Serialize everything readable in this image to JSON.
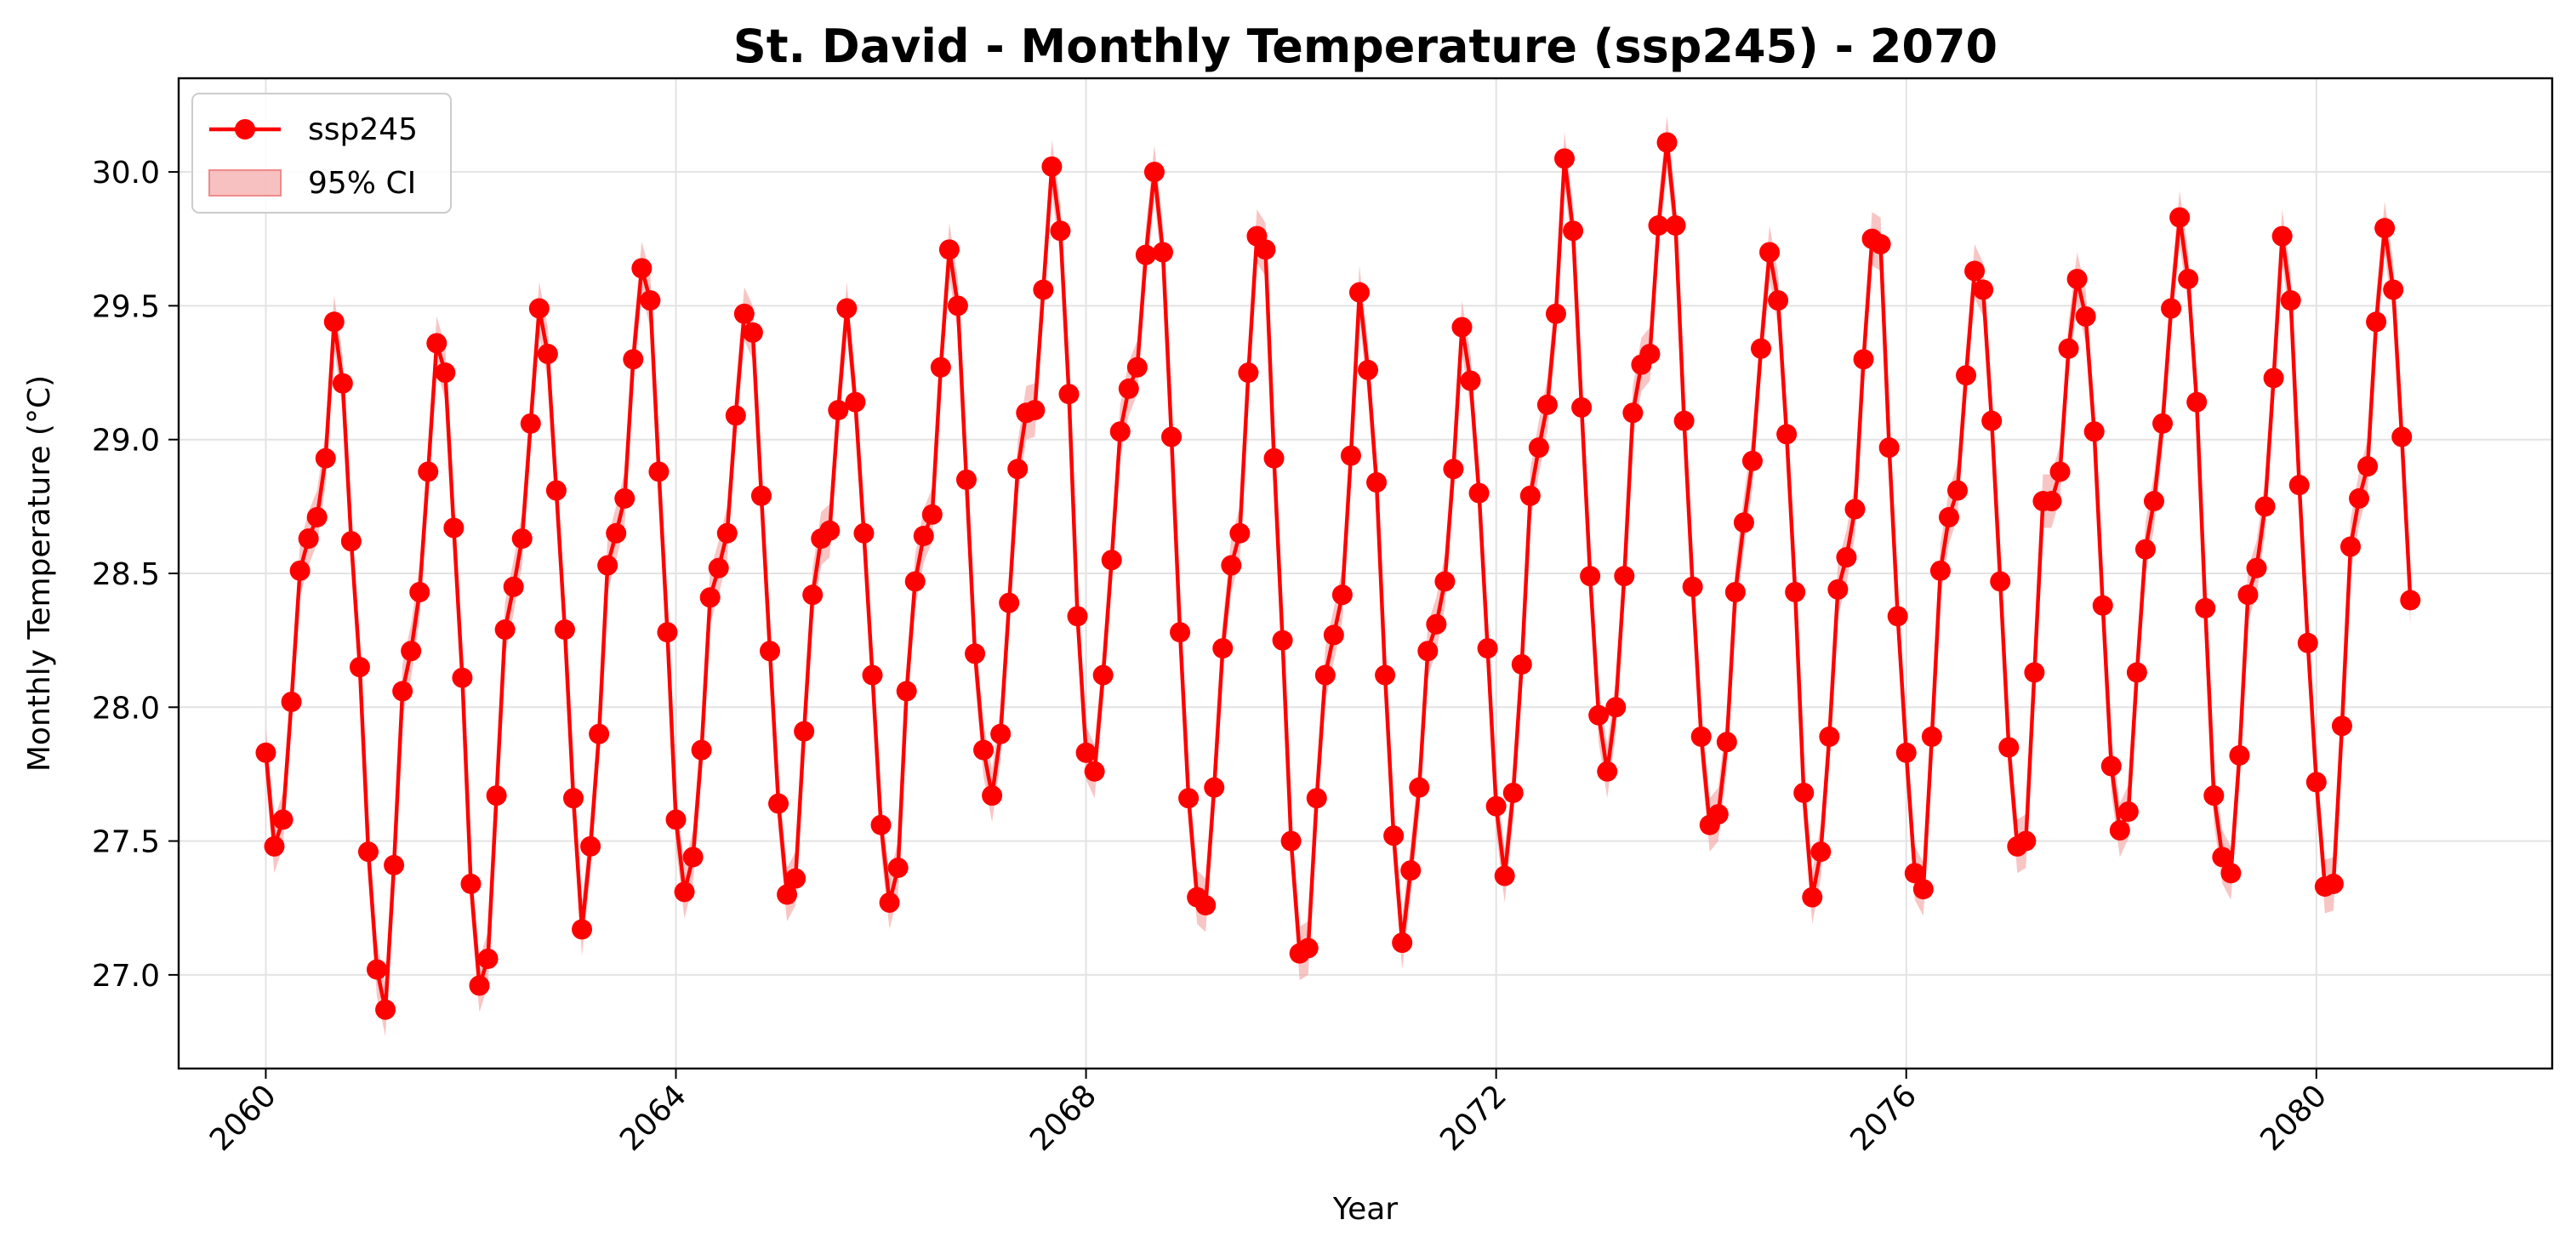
{
  "chart_data": {
    "type": "line",
    "title": "St. David - Monthly Temperature (ssp245) - 2070",
    "xlabel": "Year",
    "ylabel": "Monthly Temperature (°C)",
    "xlim": [
      2059.15,
      2082.3
    ],
    "ylim": [
      26.65,
      30.35
    ],
    "x_ticks": [
      2060,
      2064,
      2068,
      2072,
      2076,
      2080
    ],
    "x_tick_labels": [
      "2060",
      "2064",
      "2068",
      "2072",
      "2076",
      "2080"
    ],
    "y_ticks": [
      27.0,
      27.5,
      28.0,
      28.5,
      29.0,
      29.5,
      30.0
    ],
    "y_tick_labels": [
      "27.0",
      "27.5",
      "28.0",
      "28.5",
      "29.0",
      "29.5",
      "30.0"
    ],
    "grid": true,
    "legend_position": "top-left",
    "legend": [
      {
        "label": "ssp245",
        "kind": "line-marker"
      },
      {
        "label": "95% CI",
        "kind": "band"
      }
    ],
    "colors": {
      "line": "#ff0000",
      "band": "#f4a6a6"
    },
    "ci_halfwidth": 0.1,
    "start_year": 2060,
    "months_per_year": 12,
    "series": [
      {
        "name": "ssp245",
        "values": [
          27.83,
          27.48,
          27.58,
          28.02,
          28.51,
          28.63,
          28.71,
          28.93,
          29.44,
          29.21,
          28.62,
          28.15,
          27.46,
          27.02,
          26.87,
          27.41,
          28.06,
          28.21,
          28.43,
          28.88,
          29.36,
          29.25,
          28.67,
          28.11,
          27.34,
          26.96,
          27.06,
          27.67,
          28.29,
          28.45,
          28.63,
          29.06,
          29.49,
          29.32,
          28.81,
          28.29,
          27.66,
          27.17,
          27.48,
          27.9,
          28.53,
          28.65,
          28.78,
          29.3,
          29.64,
          29.52,
          28.88,
          28.28,
          27.58,
          27.31,
          27.44,
          27.84,
          28.41,
          28.52,
          28.65,
          29.09,
          29.47,
          29.4,
          28.79,
          28.21,
          27.64,
          27.3,
          27.36,
          27.91,
          28.42,
          28.63,
          28.66,
          29.11,
          29.49,
          29.14,
          28.65,
          28.12,
          27.56,
          27.27,
          27.4,
          28.06,
          28.47,
          28.64,
          28.72,
          29.27,
          29.71,
          29.5,
          28.85,
          28.2,
          27.84,
          27.67,
          27.9,
          28.39,
          28.89,
          29.1,
          29.11,
          29.56,
          30.02,
          29.78,
          29.17,
          28.34,
          27.83,
          27.76,
          28.12,
          28.55,
          29.03,
          29.19,
          29.27,
          29.69,
          30.0,
          29.7,
          29.01,
          28.28,
          27.66,
          27.29,
          27.26,
          27.7,
          28.22,
          28.53,
          28.65,
          29.25,
          29.76,
          29.71,
          28.93,
          28.25,
          27.5,
          27.08,
          27.1,
          27.66,
          28.12,
          28.27,
          28.42,
          28.94,
          29.55,
          29.26,
          28.84,
          28.12,
          27.52,
          27.12,
          27.39,
          27.7,
          28.21,
          28.31,
          28.47,
          28.89,
          29.42,
          29.22,
          28.8,
          28.22,
          27.63,
          27.37,
          27.68,
          28.16,
          28.79,
          28.97,
          29.13,
          29.47,
          30.05,
          29.78,
          29.12,
          28.49,
          27.97,
          27.76,
          28.0,
          28.49,
          29.1,
          29.28,
          29.32,
          29.8,
          30.11,
          29.8,
          29.07,
          28.45,
          27.89,
          27.56,
          27.6,
          27.87,
          28.43,
          28.69,
          28.92,
          29.34,
          29.7,
          29.52,
          29.02,
          28.43,
          27.68,
          27.29,
          27.46,
          27.89,
          28.44,
          28.56,
          28.74,
          29.3,
          29.75,
          29.73,
          28.97,
          28.34,
          27.83,
          27.38,
          27.32,
          27.89,
          28.51,
          28.71,
          28.81,
          29.24,
          29.63,
          29.56,
          29.07,
          28.47,
          27.85,
          27.48,
          27.5,
          28.13,
          28.77,
          28.77,
          28.88,
          29.34,
          29.6,
          29.46,
          29.03,
          28.38,
          27.78,
          27.54,
          27.61,
          28.13,
          28.59,
          28.77,
          29.06,
          29.49,
          29.83,
          29.6,
          29.14,
          28.37,
          27.67,
          27.44,
          27.38,
          27.82,
          28.42,
          28.52,
          28.75,
          29.23,
          29.76,
          29.52,
          28.83,
          28.24,
          27.72,
          27.33,
          27.34,
          27.93,
          28.6,
          28.78,
          28.9,
          29.44,
          29.79,
          29.56,
          29.01,
          28.4
        ]
      }
    ]
  }
}
